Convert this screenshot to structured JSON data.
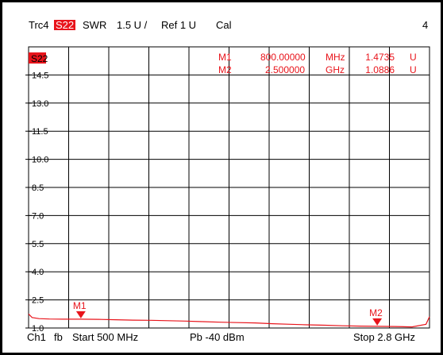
{
  "header": {
    "trace": "Trc4",
    "parameter": "S22",
    "format": "SWR",
    "scale": "1.5 U /",
    "ref": "Ref 1 U",
    "cal": "Cal",
    "channel_number": "4"
  },
  "plot": {
    "trace_label": "S22",
    "markers_table": [
      {
        "name": "M1",
        "freq": "800.00000",
        "freq_unit": "MHz",
        "value": "1.4735",
        "value_unit": "U"
      },
      {
        "name": "M2",
        "freq": "2.500000",
        "freq_unit": "GHz",
        "value": "1.0886",
        "value_unit": "U"
      }
    ],
    "y_tick_labels": [
      "14.5",
      "13.0",
      "11.5",
      "10.0",
      "8.5",
      "7.0",
      "5.5",
      "4.0",
      "2.5",
      "1.0"
    ],
    "colors": {
      "trace": "#e8141b",
      "grid": "#000000",
      "text": "#000000"
    }
  },
  "footer": {
    "channel": "Ch1",
    "mode": "fb",
    "start": "Start 500 MHz",
    "power": "Pb  -40 dBm",
    "stop": "Stop 2.8 GHz"
  },
  "chart_data": {
    "type": "line",
    "x_unit": "MHz",
    "x_range": [
      500,
      2800
    ],
    "y_unit": "U",
    "ylim": [
      1.0,
      16.0
    ],
    "y_ticks": [
      14.5,
      13.0,
      11.5,
      10.0,
      8.5,
      7.0,
      5.5,
      4.0,
      2.5,
      1.0
    ],
    "grid": true,
    "series": [
      {
        "name": "S22",
        "x": [
          500,
          520,
          560,
          620,
          700,
          800,
          900,
          1000,
          1100,
          1200,
          1300,
          1400,
          1500,
          1600,
          1700,
          1800,
          1900,
          2000,
          2100,
          2200,
          2300,
          2400,
          2500,
          2600,
          2700,
          2780,
          2800
        ],
        "values": [
          1.75,
          1.56,
          1.5,
          1.48,
          1.47,
          1.47,
          1.46,
          1.44,
          1.42,
          1.41,
          1.39,
          1.37,
          1.34,
          1.31,
          1.29,
          1.27,
          1.23,
          1.2,
          1.17,
          1.15,
          1.12,
          1.1,
          1.09,
          1.08,
          1.06,
          1.2,
          1.6
        ]
      }
    ],
    "markers": [
      {
        "name": "M1",
        "x": 800,
        "y": 1.4735
      },
      {
        "name": "M2",
        "x": 2500,
        "y": 1.0886
      }
    ]
  }
}
